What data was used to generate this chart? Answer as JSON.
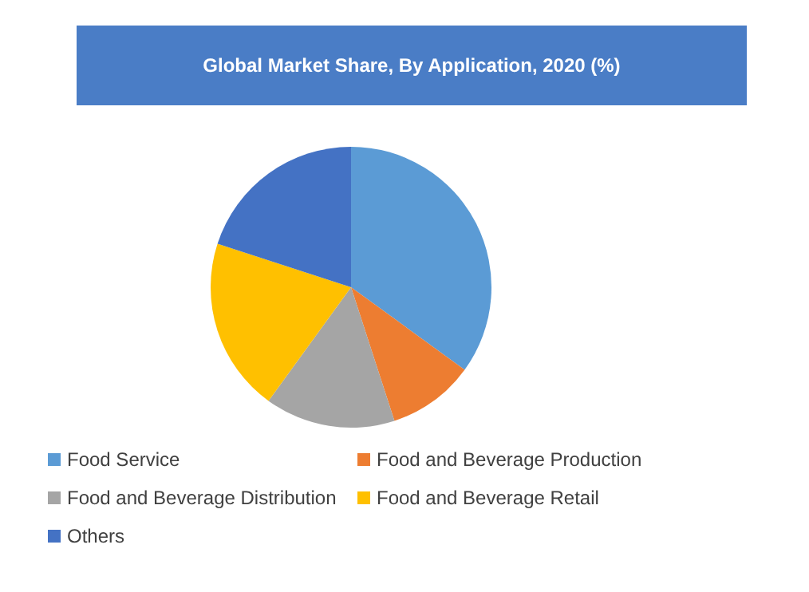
{
  "chart_data": {
    "type": "pie",
    "title": "Global  Market Share, By Application, 2020 (%)",
    "categories": [
      "Food Service",
      "Food and Beverage Production",
      "Food and Beverage Distribution",
      "Food and Beverage Retail",
      "Others"
    ],
    "values": [
      35,
      10,
      15,
      20,
      20
    ],
    "colors": [
      "#5b9bd5",
      "#ed7d31",
      "#a5a5a5",
      "#ffc000",
      "#4472c4"
    ],
    "legend": "bottom"
  }
}
